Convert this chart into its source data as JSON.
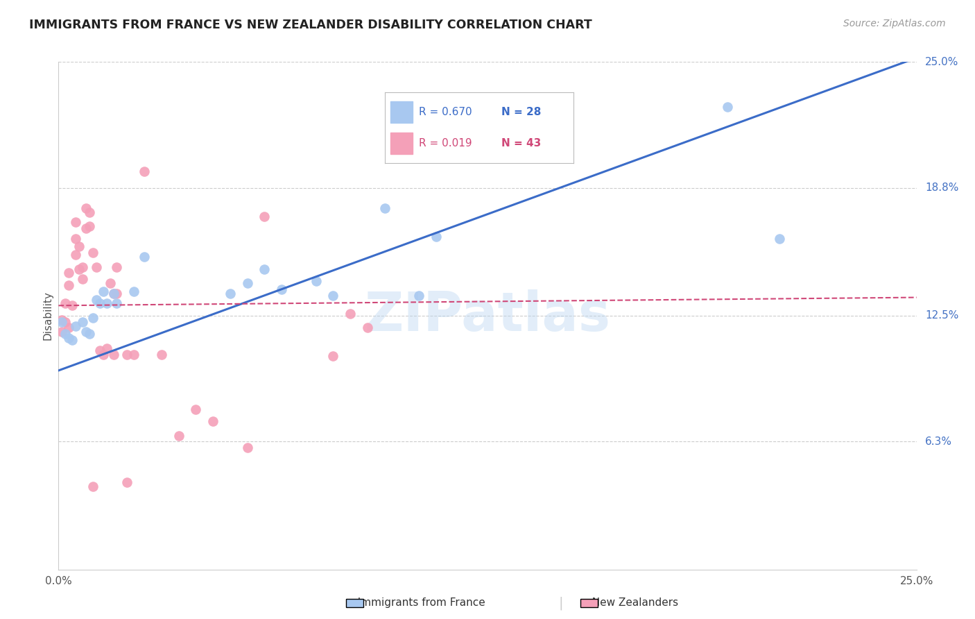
{
  "title": "IMMIGRANTS FROM FRANCE VS NEW ZEALANDER DISABILITY CORRELATION CHART",
  "source": "Source: ZipAtlas.com",
  "ylabel": "Disability",
  "xlim": [
    0.0,
    0.25
  ],
  "ylim": [
    0.0,
    0.25
  ],
  "xticks": [
    0.0,
    0.05,
    0.1,
    0.15,
    0.2,
    0.25
  ],
  "xtick_labels": [
    "0.0%",
    "",
    "",
    "",
    "",
    "25.0%"
  ],
  "ytick_labels_right": [
    "25.0%",
    "18.8%",
    "12.5%",
    "6.3%"
  ],
  "ytick_vals_right": [
    0.25,
    0.188,
    0.125,
    0.063
  ],
  "watermark": "ZIPatlas",
  "legend_blue_r": "0.670",
  "legend_blue_n": "28",
  "legend_pink_r": "0.019",
  "legend_pink_n": "43",
  "color_blue": "#A8C8F0",
  "color_pink": "#F4A0B8",
  "color_blue_line": "#3B6CC8",
  "color_pink_line": "#D04878",
  "color_right_labels": "#4472C4",
  "scatter_blue": [
    [
      0.001,
      0.122
    ],
    [
      0.002,
      0.116
    ],
    [
      0.003,
      0.114
    ],
    [
      0.004,
      0.113
    ],
    [
      0.005,
      0.12
    ],
    [
      0.007,
      0.122
    ],
    [
      0.008,
      0.117
    ],
    [
      0.009,
      0.116
    ],
    [
      0.01,
      0.124
    ],
    [
      0.011,
      0.133
    ],
    [
      0.012,
      0.131
    ],
    [
      0.013,
      0.137
    ],
    [
      0.014,
      0.131
    ],
    [
      0.016,
      0.136
    ],
    [
      0.017,
      0.131
    ],
    [
      0.022,
      0.137
    ],
    [
      0.025,
      0.154
    ],
    [
      0.05,
      0.136
    ],
    [
      0.055,
      0.141
    ],
    [
      0.06,
      0.148
    ],
    [
      0.065,
      0.138
    ],
    [
      0.075,
      0.142
    ],
    [
      0.08,
      0.135
    ],
    [
      0.095,
      0.178
    ],
    [
      0.105,
      0.135
    ],
    [
      0.11,
      0.164
    ],
    [
      0.195,
      0.228
    ],
    [
      0.21,
      0.163
    ]
  ],
  "scatter_pink": [
    [
      0.001,
      0.117
    ],
    [
      0.001,
      0.123
    ],
    [
      0.002,
      0.122
    ],
    [
      0.002,
      0.131
    ],
    [
      0.003,
      0.119
    ],
    [
      0.003,
      0.14
    ],
    [
      0.003,
      0.146
    ],
    [
      0.004,
      0.13
    ],
    [
      0.005,
      0.155
    ],
    [
      0.005,
      0.163
    ],
    [
      0.005,
      0.171
    ],
    [
      0.006,
      0.148
    ],
    [
      0.006,
      0.159
    ],
    [
      0.007,
      0.143
    ],
    [
      0.007,
      0.149
    ],
    [
      0.008,
      0.168
    ],
    [
      0.008,
      0.178
    ],
    [
      0.009,
      0.169
    ],
    [
      0.009,
      0.176
    ],
    [
      0.01,
      0.156
    ],
    [
      0.011,
      0.149
    ],
    [
      0.012,
      0.108
    ],
    [
      0.013,
      0.106
    ],
    [
      0.014,
      0.109
    ],
    [
      0.015,
      0.141
    ],
    [
      0.016,
      0.136
    ],
    [
      0.016,
      0.106
    ],
    [
      0.017,
      0.136
    ],
    [
      0.017,
      0.149
    ],
    [
      0.02,
      0.106
    ],
    [
      0.022,
      0.106
    ],
    [
      0.025,
      0.196
    ],
    [
      0.03,
      0.106
    ],
    [
      0.04,
      0.079
    ],
    [
      0.045,
      0.073
    ],
    [
      0.055,
      0.06
    ],
    [
      0.06,
      0.174
    ],
    [
      0.08,
      0.105
    ],
    [
      0.085,
      0.126
    ],
    [
      0.09,
      0.119
    ],
    [
      0.02,
      0.043
    ],
    [
      0.035,
      0.066
    ],
    [
      0.01,
      0.041
    ]
  ],
  "blue_line_x": [
    0.0,
    0.25
  ],
  "blue_line_y": [
    0.098,
    0.252
  ],
  "pink_line_x": [
    0.0,
    0.25
  ],
  "pink_line_y": [
    0.13,
    0.134
  ]
}
